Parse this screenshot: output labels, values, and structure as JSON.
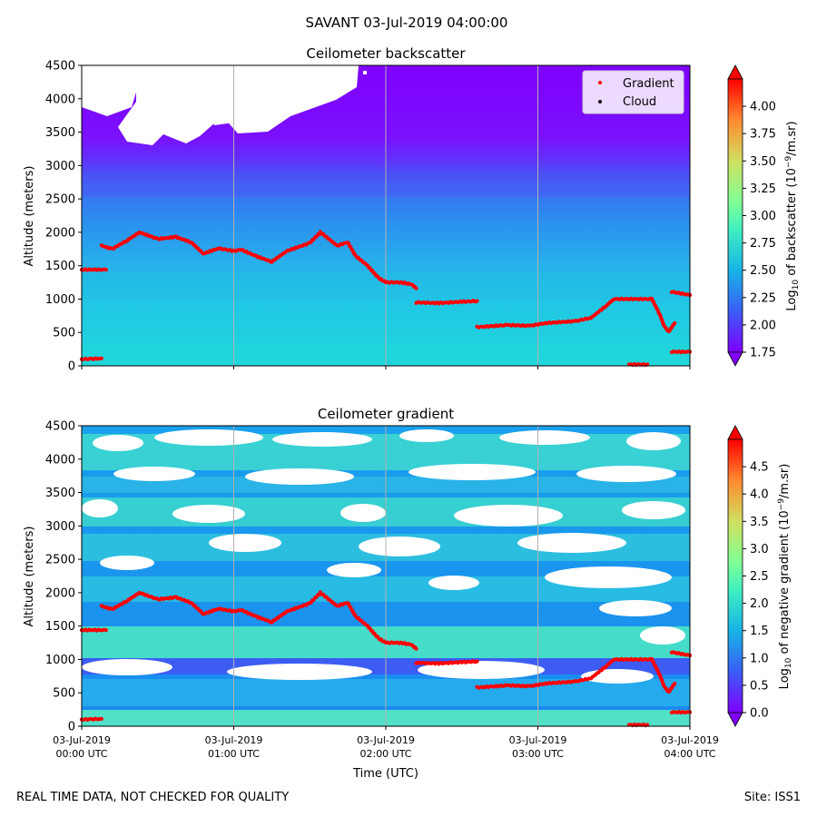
{
  "suptitle": "SAVANT 03-Jul-2019 04:00:00",
  "footer_left": "REAL TIME DATA, NOT CHECKED FOR QUALITY",
  "footer_right": "Site: ISS1",
  "colors": {
    "purple": "#7f00ff",
    "blue": "#2f9df0",
    "cyan": "#19d2e0",
    "green": "#7fffaa",
    "red": "#ff0000",
    "grid": "#b0b0b0"
  },
  "chart_data": [
    {
      "type": "heatmap",
      "title": "Ceilometer backscatter",
      "xlabel": "Time (UTC)",
      "ylabel": "Altitude (meters)",
      "ylim": [
        0,
        4500
      ],
      "yticks": [
        "0",
        "500",
        "1000",
        "1500",
        "2000",
        "2500",
        "3000",
        "3500",
        "4000",
        "4500"
      ],
      "xticks": [
        {
          "line1": "03-Jul-2019",
          "line2": "00:00 UTC"
        },
        {
          "line1": "03-Jul-2019",
          "line2": "01:00 UTC"
        },
        {
          "line1": "03-Jul-2019",
          "line2": "02:00 UTC"
        },
        {
          "line1": "03-Jul-2019",
          "line2": "03:00 UTC"
        },
        {
          "line1": "03-Jul-2019",
          "line2": "04:00 UTC"
        }
      ],
      "colorbar_label": "Log10 of backscatter (10^-9/m.sr)",
      "colorbar_ticks": [
        "1.75",
        "2.00",
        "2.25",
        "2.50",
        "2.75",
        "3.00",
        "3.25",
        "3.50",
        "3.75",
        "4.00"
      ],
      "colorbar_range": [
        1.75,
        4.25
      ],
      "legend": [
        {
          "label": "Gradient",
          "color": "#ff0000"
        },
        {
          "label": "Cloud",
          "color": "#000000"
        }
      ]
    },
    {
      "type": "heatmap",
      "title": "Ceilometer gradient",
      "xlabel": "Time (UTC)",
      "ylabel": "Altitude (meters)",
      "ylim": [
        0,
        4500
      ],
      "yticks": [
        "0",
        "500",
        "1000",
        "1500",
        "2000",
        "2500",
        "3000",
        "3500",
        "4000",
        "4500"
      ],
      "xticks": [
        {
          "line1": "03-Jul-2019",
          "line2": "00:00 UTC"
        },
        {
          "line1": "03-Jul-2019",
          "line2": "01:00 UTC"
        },
        {
          "line1": "03-Jul-2019",
          "line2": "02:00 UTC"
        },
        {
          "line1": "03-Jul-2019",
          "line2": "03:00 UTC"
        },
        {
          "line1": "03-Jul-2019",
          "line2": "04:00 UTC"
        }
      ],
      "colorbar_label": "Log10 of negative gradient (10^-9/m.sr)",
      "colorbar_ticks": [
        "0.0",
        "0.5",
        "1.0",
        "1.5",
        "2.0",
        "2.5",
        "3.0",
        "3.5",
        "4.0",
        "4.5"
      ],
      "colorbar_range": [
        0.0,
        5.0
      ]
    }
  ],
  "gradient_series": {
    "name": "Gradient",
    "x_unit": "hours UTC",
    "y_unit": "meters",
    "segments": [
      [
        [
          0.0,
          1440
        ],
        [
          0.16,
          1440
        ]
      ],
      [
        [
          0.13,
          1800
        ],
        [
          0.2,
          1750
        ],
        [
          0.3,
          1880
        ],
        [
          0.38,
          2000
        ],
        [
          0.5,
          1900
        ],
        [
          0.62,
          1930
        ],
        [
          0.72,
          1850
        ],
        [
          0.8,
          1680
        ],
        [
          0.9,
          1760
        ],
        [
          1.0,
          1720
        ],
        [
          1.05,
          1740
        ],
        [
          1.15,
          1640
        ],
        [
          1.25,
          1560
        ],
        [
          1.35,
          1720
        ],
        [
          1.5,
          1840
        ],
        [
          1.57,
          2000
        ],
        [
          1.68,
          1800
        ],
        [
          1.75,
          1850
        ],
        [
          1.8,
          1650
        ],
        [
          1.88,
          1500
        ],
        [
          1.95,
          1320
        ],
        [
          2.0,
          1250
        ],
        [
          2.1,
          1250
        ],
        [
          2.17,
          1220
        ],
        [
          2.2,
          1160
        ]
      ],
      [
        [
          2.2,
          950
        ],
        [
          2.35,
          940
        ],
        [
          2.5,
          960
        ],
        [
          2.6,
          970
        ]
      ],
      [
        [
          2.6,
          580
        ],
        [
          2.8,
          610
        ],
        [
          2.95,
          600
        ],
        [
          3.05,
          640
        ],
        [
          3.25,
          670
        ],
        [
          3.35,
          720
        ],
        [
          3.45,
          900
        ],
        [
          3.5,
          1000
        ],
        [
          3.75,
          1000
        ]
      ],
      [
        [
          3.75,
          1000
        ],
        [
          3.8,
          780
        ],
        [
          3.83,
          600
        ],
        [
          3.86,
          510
        ],
        [
          3.9,
          640
        ]
      ],
      [
        [
          3.88,
          1110
        ],
        [
          4.0,
          1060
        ]
      ],
      [
        [
          3.88,
          210
        ],
        [
          4.0,
          210
        ]
      ],
      [
        [
          0.0,
          100
        ],
        [
          0.13,
          110
        ]
      ],
      [
        [
          3.6,
          20
        ],
        [
          3.72,
          20
        ]
      ]
    ]
  }
}
